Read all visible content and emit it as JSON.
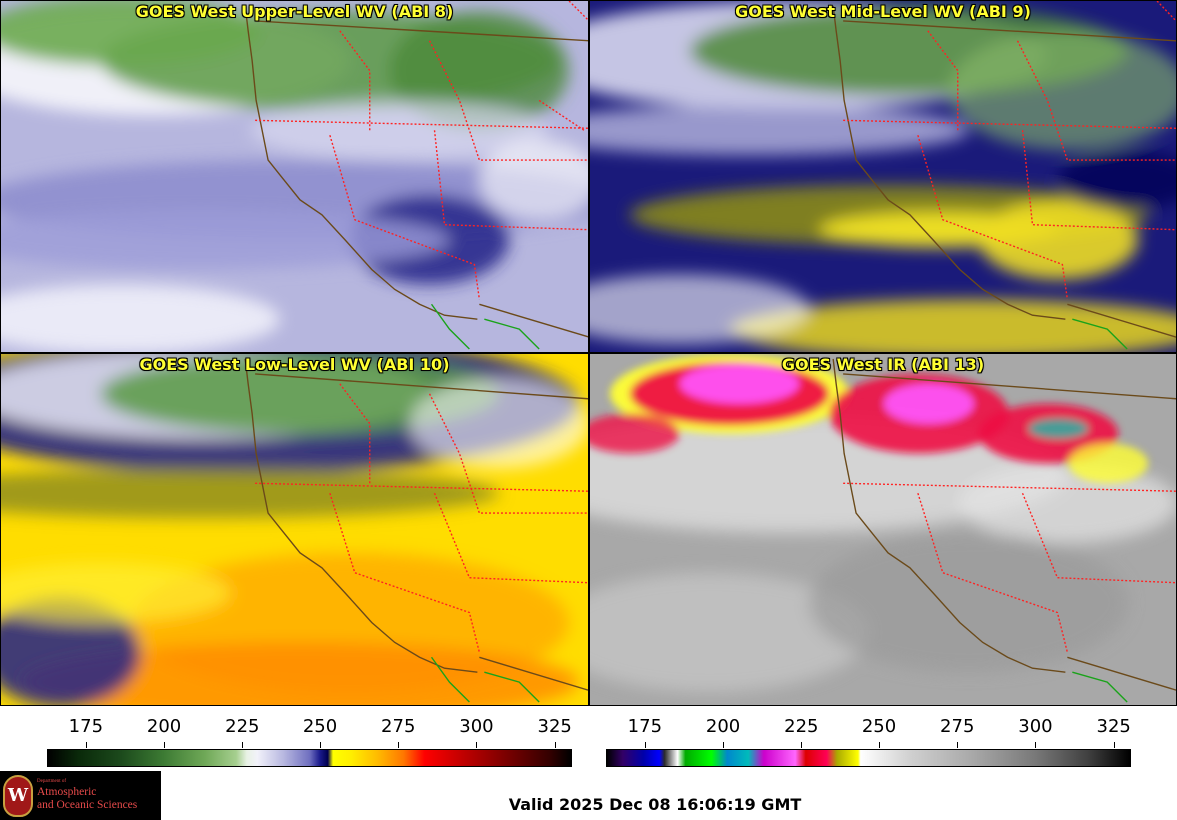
{
  "panels": [
    {
      "id": "p1",
      "title": "GOES West Upper-Level WV (ABI 8)",
      "style": "upper"
    },
    {
      "id": "p2",
      "title": "GOES West Mid-Level WV (ABI 9)",
      "style": "mid"
    },
    {
      "id": "p3",
      "title": "GOES West Low-Level WV (ABI 10)",
      "style": "low"
    },
    {
      "id": "p4",
      "title": "GOES West IR (ABI 13)",
      "style": "ir"
    }
  ],
  "colorbars": {
    "left": {
      "ticks": [
        "175",
        "200",
        "225",
        "250",
        "275",
        "300",
        "325"
      ],
      "ticks_fraction": [
        0.074,
        0.223,
        0.372,
        0.52,
        0.669,
        0.818,
        0.967
      ]
    },
    "right": {
      "ticks": [
        "175",
        "200",
        "225",
        "250",
        "275",
        "300",
        "325"
      ],
      "ticks_fraction": [
        0.074,
        0.223,
        0.372,
        0.52,
        0.669,
        0.818,
        0.967
      ]
    }
  },
  "logo": {
    "line0": "Department of",
    "line1": "Atmospheric",
    "line2": "and Oceanic Sciences",
    "seal_letter": "W"
  },
  "valid_text": "Valid 2025 Dec 08 16:06:19 GMT",
  "colors": {
    "title": "#ffff33",
    "state_border": "#ff2222",
    "coast": "#6b4a1a",
    "mexico": "#1aa31a"
  }
}
